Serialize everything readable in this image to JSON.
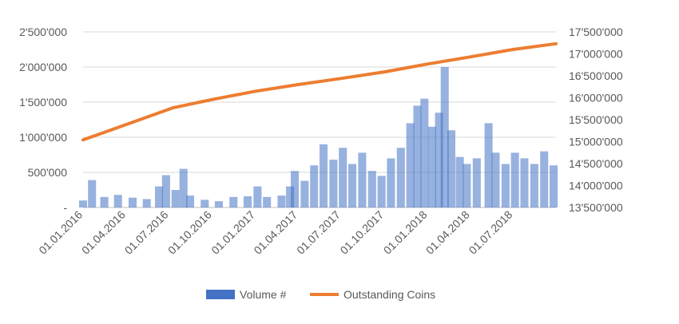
{
  "chart_data": {
    "type": "bar+line",
    "title": "",
    "grid": true,
    "legend_position": "bottom",
    "left_axis": {
      "ylim": [
        0,
        2500000
      ],
      "ticks": [
        0,
        500000,
        1000000,
        1500000,
        2000000,
        2500000
      ],
      "tick_labels": [
        "-",
        "500'000",
        "1'000'000",
        "1'500'000",
        "2'000'000",
        "2'500'000"
      ]
    },
    "right_axis": {
      "ylim": [
        13500000,
        17500000
      ],
      "ticks": [
        13500000,
        14000000,
        14500000,
        15000000,
        15500000,
        16000000,
        16500000,
        17000000,
        17500000
      ],
      "tick_labels": [
        "13'500'000",
        "14'000'000",
        "14'500'000",
        "15'000'000",
        "15'500'000",
        "16'000'000",
        "16'500'000",
        "17'000'000",
        "17'500'000"
      ]
    },
    "x_axis": {
      "range": [
        "2016-01-01",
        "2018-09-30"
      ],
      "ticks": [
        "2016-01-01",
        "2016-04-01",
        "2016-07-01",
        "2016-10-01",
        "2017-01-01",
        "2017-04-01",
        "2017-07-01",
        "2017-10-01",
        "2018-01-01",
        "2018-04-01",
        "2018-07-01"
      ],
      "tick_labels": [
        "01.01.2016",
        "01.04.2016",
        "01.07.2016",
        "01.10.2016",
        "01.01.2017",
        "01.04.2017",
        "01.07.2017",
        "01.10.2017",
        "01.01.2018",
        "01.04.2018",
        "01.07.2018"
      ]
    },
    "series": [
      {
        "name": "Volume #",
        "type": "bar",
        "axis": "left",
        "color": "#4472C4",
        "points": [
          [
            "2016-01-01",
            100000
          ],
          [
            "2016-01-20",
            390000
          ],
          [
            "2016-02-15",
            150000
          ],
          [
            "2016-03-15",
            180000
          ],
          [
            "2016-04-15",
            140000
          ],
          [
            "2016-05-15",
            120000
          ],
          [
            "2016-06-10",
            300000
          ],
          [
            "2016-06-25",
            460000
          ],
          [
            "2016-07-15",
            250000
          ],
          [
            "2016-08-01",
            550000
          ],
          [
            "2016-08-15",
            170000
          ],
          [
            "2016-09-15",
            110000
          ],
          [
            "2016-10-15",
            90000
          ],
          [
            "2016-11-15",
            150000
          ],
          [
            "2016-12-15",
            160000
          ],
          [
            "2017-01-05",
            300000
          ],
          [
            "2017-01-25",
            150000
          ],
          [
            "2017-02-25",
            170000
          ],
          [
            "2017-03-15",
            300000
          ],
          [
            "2017-03-25",
            520000
          ],
          [
            "2017-04-15",
            380000
          ],
          [
            "2017-05-05",
            600000
          ],
          [
            "2017-05-25",
            900000
          ],
          [
            "2017-06-15",
            680000
          ],
          [
            "2017-07-05",
            850000
          ],
          [
            "2017-07-25",
            620000
          ],
          [
            "2017-08-15",
            780000
          ],
          [
            "2017-09-05",
            520000
          ],
          [
            "2017-09-25",
            450000
          ],
          [
            "2017-10-15",
            700000
          ],
          [
            "2017-11-05",
            850000
          ],
          [
            "2017-11-25",
            1200000
          ],
          [
            "2017-12-10",
            1450000
          ],
          [
            "2017-12-25",
            1550000
          ],
          [
            "2018-01-10",
            1150000
          ],
          [
            "2018-01-25",
            1350000
          ],
          [
            "2018-02-06",
            2000000
          ],
          [
            "2018-02-20",
            1100000
          ],
          [
            "2018-03-10",
            720000
          ],
          [
            "2018-03-25",
            620000
          ],
          [
            "2018-04-15",
            700000
          ],
          [
            "2018-05-10",
            1200000
          ],
          [
            "2018-05-25",
            780000
          ],
          [
            "2018-06-15",
            620000
          ],
          [
            "2018-07-05",
            780000
          ],
          [
            "2018-07-25",
            700000
          ],
          [
            "2018-08-15",
            620000
          ],
          [
            "2018-09-05",
            800000
          ],
          [
            "2018-09-25",
            600000
          ]
        ]
      },
      {
        "name": "Outstanding Coins",
        "type": "line",
        "axis": "right",
        "color": "#ED7D31",
        "points": [
          [
            "2016-01-01",
            15040000
          ],
          [
            "2016-07-09",
            15770000
          ],
          [
            "2016-10-01",
            15960000
          ],
          [
            "2017-01-01",
            16150000
          ],
          [
            "2017-04-01",
            16300000
          ],
          [
            "2017-07-01",
            16440000
          ],
          [
            "2017-10-01",
            16590000
          ],
          [
            "2018-01-01",
            16770000
          ],
          [
            "2018-04-01",
            16930000
          ],
          [
            "2018-07-01",
            17100000
          ],
          [
            "2018-09-30",
            17230000
          ]
        ]
      }
    ]
  }
}
